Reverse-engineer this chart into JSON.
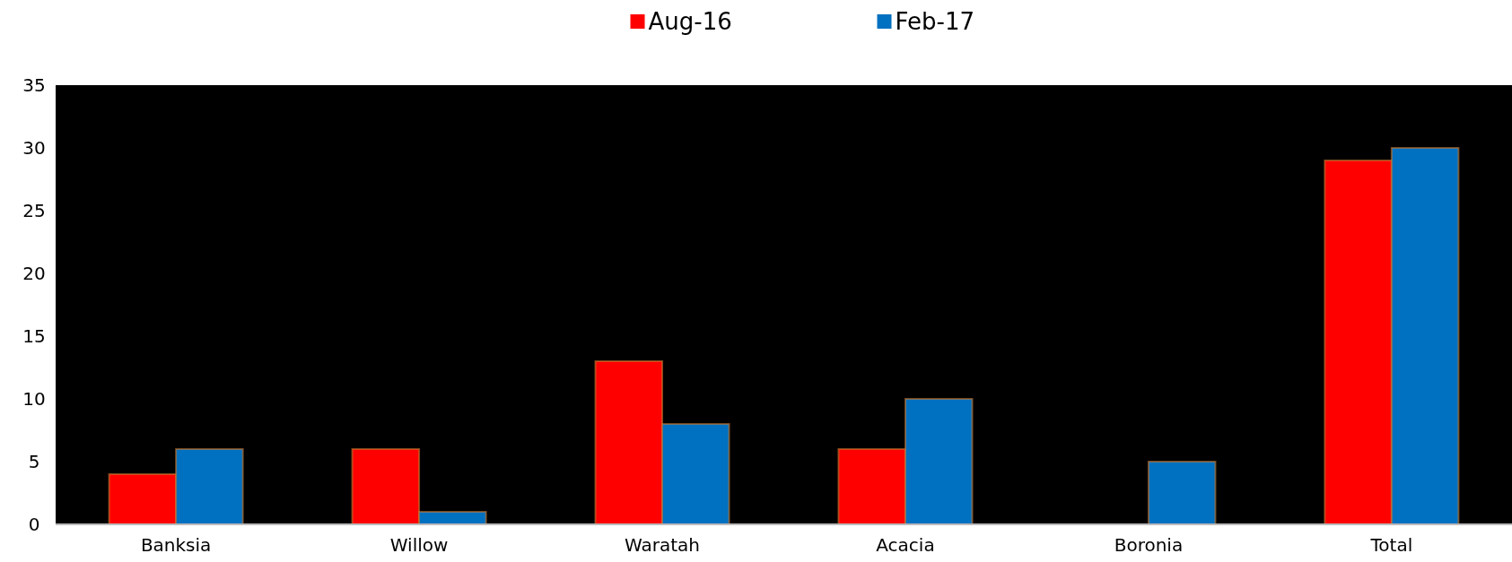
{
  "chart_data": {
    "type": "bar",
    "categories": [
      "Banksia",
      "Willow",
      "Waratah",
      "Acacia",
      "Boronia",
      "Total"
    ],
    "series": [
      {
        "name": "Aug-16",
        "color": "#ff0000",
        "values": [
          4,
          6,
          13,
          6,
          0,
          29
        ]
      },
      {
        "name": "Feb-17",
        "color": "#0070c0",
        "values": [
          6,
          1,
          8,
          10,
          5,
          30
        ]
      }
    ],
    "ylim": [
      0,
      35
    ],
    "yticks": [
      0,
      5,
      10,
      15,
      20,
      25,
      30,
      35
    ],
    "grid": false,
    "legend": "top"
  }
}
